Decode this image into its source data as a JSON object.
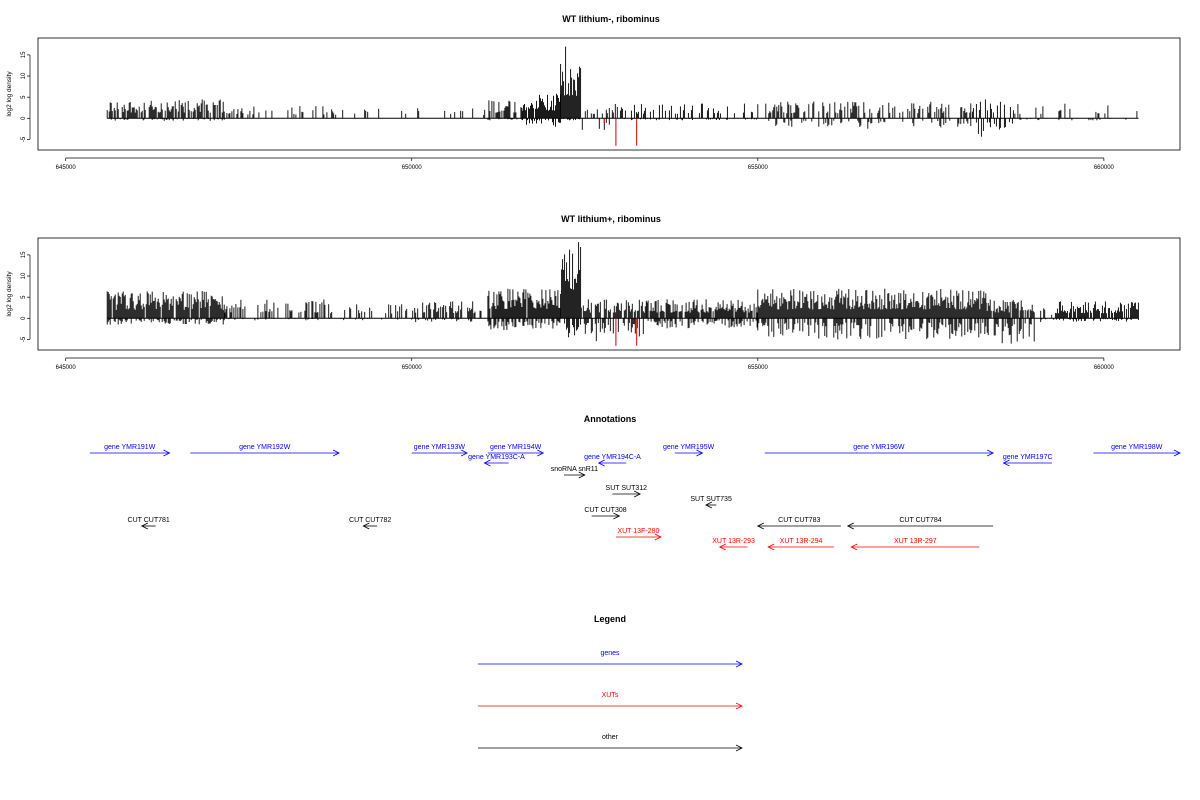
{
  "chart_data": [
    {
      "type": "bar",
      "title": "WT lithium-, ribominus",
      "ylabel": "log2 log density",
      "xlim": [
        644600,
        661100
      ],
      "ylim": [
        -7.5,
        19
      ],
      "x_ticks": [
        645000,
        650000,
        655000,
        660000
      ],
      "y_ticks": [
        -5,
        0,
        5,
        10,
        15
      ],
      "baseline": [
        645600,
        660500
      ],
      "segments": [
        {
          "from": 645600,
          "to": 647300,
          "density": 0.75,
          "pos_max": 4.5,
          "neg_max": 0.6
        },
        {
          "from": 647300,
          "to": 648800,
          "density": 0.25,
          "pos_max": 3.0,
          "neg_max": 0.2
        },
        {
          "from": 648800,
          "to": 651100,
          "density": 0.15,
          "pos_max": 2.5,
          "neg_max": 0.2
        },
        {
          "from": 651100,
          "to": 651600,
          "density": 0.6,
          "pos_max": 4.5,
          "neg_max": 0.5
        },
        {
          "from": 651600,
          "to": 652150,
          "density": 0.9,
          "pos_max": 6.0,
          "neg_max": 2.0
        },
        {
          "from": 652150,
          "to": 652450,
          "density": 1.0,
          "pos_max": 17.5,
          "neg_max": 0.5
        },
        {
          "from": 652450,
          "to": 653000,
          "density": 0.35,
          "pos_max": 3.5,
          "neg_max": 3.0
        },
        {
          "from": 653000,
          "to": 655000,
          "density": 0.3,
          "pos_max": 3.5,
          "neg_max": 0.5
        },
        {
          "from": 655000,
          "to": 658100,
          "density": 0.4,
          "pos_max": 4.0,
          "neg_max": 2.5
        },
        {
          "from": 658100,
          "to": 658700,
          "density": 0.6,
          "pos_max": 4.5,
          "neg_max": 4.5
        },
        {
          "from": 658700,
          "to": 660500,
          "density": 0.2,
          "pos_max": 3.5,
          "neg_max": 0.5
        }
      ],
      "red_bars": [
        {
          "x": 652950,
          "y": -6.5
        },
        {
          "x": 653250,
          "y": -6.5
        },
        {
          "x": 652780,
          "y": -1.2
        }
      ]
    },
    {
      "type": "bar",
      "title": "WT lithium+, ribominus",
      "ylabel": "log2 log density",
      "xlim": [
        644600,
        661100
      ],
      "ylim": [
        -7.5,
        19
      ],
      "x_ticks": [
        645000,
        650000,
        655000,
        660000
      ],
      "y_ticks": [
        -5,
        0,
        5,
        10,
        15
      ],
      "baseline": [
        645600,
        660500
      ],
      "segments": [
        {
          "from": 645600,
          "to": 647300,
          "density": 0.95,
          "pos_max": 6.5,
          "neg_max": 1.5
        },
        {
          "from": 647300,
          "to": 648800,
          "density": 0.35,
          "pos_max": 4.5,
          "neg_max": 0.5
        },
        {
          "from": 648800,
          "to": 650000,
          "density": 0.25,
          "pos_max": 3.5,
          "neg_max": 0.5
        },
        {
          "from": 650000,
          "to": 650900,
          "density": 0.6,
          "pos_max": 4.0,
          "neg_max": 1.0
        },
        {
          "from": 650900,
          "to": 651100,
          "density": 0.2,
          "pos_max": 2.5,
          "neg_max": 0.5
        },
        {
          "from": 651100,
          "to": 652150,
          "density": 0.95,
          "pos_max": 7.0,
          "neg_max": 3.0
        },
        {
          "from": 652150,
          "to": 652450,
          "density": 1.0,
          "pos_max": 18.5,
          "neg_max": 5.5
        },
        {
          "from": 652450,
          "to": 653400,
          "density": 0.8,
          "pos_max": 4.5,
          "neg_max": 5.5
        },
        {
          "from": 653400,
          "to": 655000,
          "density": 0.85,
          "pos_max": 4.5,
          "neg_max": 2.5
        },
        {
          "from": 655000,
          "to": 658300,
          "density": 1.0,
          "pos_max": 7.0,
          "neg_max": 5.0
        },
        {
          "from": 658300,
          "to": 659000,
          "density": 0.9,
          "pos_max": 4.5,
          "neg_max": 6.0
        },
        {
          "from": 659000,
          "to": 659300,
          "density": 0.3,
          "pos_max": 2.5,
          "neg_max": 1.0
        },
        {
          "from": 659300,
          "to": 660500,
          "density": 0.85,
          "pos_max": 4.0,
          "neg_max": 0.8
        }
      ],
      "red_bars": [
        {
          "x": 652950,
          "y": -6.5
        },
        {
          "x": 653250,
          "y": -6.5
        }
      ]
    },
    {
      "type": "annotation-track",
      "title": "Annotations",
      "xlim": [
        644600,
        661100
      ],
      "features": [
        {
          "label": "gene YMR191W",
          "kind": "gene",
          "start": 645350,
          "end": 646500,
          "dir": "+",
          "row": 0
        },
        {
          "label": "gene YMR192W",
          "kind": "gene",
          "start": 646800,
          "end": 648950,
          "dir": "+",
          "row": 0
        },
        {
          "label": "gene YMR193W",
          "kind": "gene",
          "start": 650000,
          "end": 650800,
          "dir": "+",
          "row": 0
        },
        {
          "label": "gene YMR194W",
          "kind": "gene",
          "start": 651100,
          "end": 651900,
          "dir": "+",
          "row": 0
        },
        {
          "label": "gene YMR193C-A",
          "kind": "gene",
          "start": 651050,
          "end": 651400,
          "dir": "-",
          "row": 1
        },
        {
          "label": "gene YMR194C-A",
          "kind": "gene",
          "start": 652700,
          "end": 653100,
          "dir": "-",
          "row": 1
        },
        {
          "label": "gene YMR195W",
          "kind": "gene",
          "start": 653800,
          "end": 654200,
          "dir": "+",
          "row": 0
        },
        {
          "label": "gene YMR196W",
          "kind": "gene",
          "start": 655100,
          "end": 658400,
          "dir": "+",
          "row": 0
        },
        {
          "label": "gene YMR197C",
          "kind": "gene",
          "start": 658550,
          "end": 659250,
          "dir": "-",
          "row": 1
        },
        {
          "label": "gene YMR198W",
          "kind": "gene",
          "start": 659850,
          "end": 661100,
          "dir": "+",
          "row": 0
        },
        {
          "label": "snoRNA snR11",
          "kind": "other",
          "start": 652200,
          "end": 652500,
          "dir": "+",
          "row": 2
        },
        {
          "label": "SUT SUT312",
          "kind": "other",
          "start": 652900,
          "end": 653300,
          "dir": "+",
          "row": 3
        },
        {
          "label": "SUT SUT735",
          "kind": "other",
          "start": 654250,
          "end": 654400,
          "dir": "-",
          "row": 4
        },
        {
          "label": "CUT CUT308",
          "kind": "other",
          "start": 652600,
          "end": 653000,
          "dir": "+",
          "row": 5
        },
        {
          "label": "CUT CUT781",
          "kind": "other",
          "start": 646100,
          "end": 646300,
          "dir": "-",
          "row": 6
        },
        {
          "label": "CUT CUT782",
          "kind": "other",
          "start": 649300,
          "end": 649500,
          "dir": "-",
          "row": 6
        },
        {
          "label": "CUT CUT783",
          "kind": "other",
          "start": 655000,
          "end": 656200,
          "dir": "-",
          "row": 6
        },
        {
          "label": "CUT CUT784",
          "kind": "other",
          "start": 656300,
          "end": 658400,
          "dir": "-",
          "row": 6
        },
        {
          "label": "XUT 13F-280",
          "kind": "xut",
          "start": 652950,
          "end": 653600,
          "dir": "+",
          "row": 7
        },
        {
          "label": "XUT 13R-293",
          "kind": "xut",
          "start": 654450,
          "end": 654850,
          "dir": "-",
          "row": 8
        },
        {
          "label": "XUT 13R-294",
          "kind": "xut",
          "start": 655150,
          "end": 656100,
          "dir": "-",
          "row": 8
        },
        {
          "label": "XUT 13R-297",
          "kind": "xut",
          "start": 656350,
          "end": 658200,
          "dir": "-",
          "row": 8
        }
      ]
    },
    {
      "type": "legend",
      "title": "Legend",
      "entries": [
        {
          "label": "genes",
          "color": "#0000ff"
        },
        {
          "label": "XUTs",
          "color": "#ff0000"
        },
        {
          "label": "other",
          "color": "#000000"
        }
      ]
    }
  ],
  "colors": {
    "gene": "#0000ff",
    "xut": "#ff0000",
    "other": "#000000",
    "bars": "#000000",
    "red_bars": "#cc0000"
  }
}
